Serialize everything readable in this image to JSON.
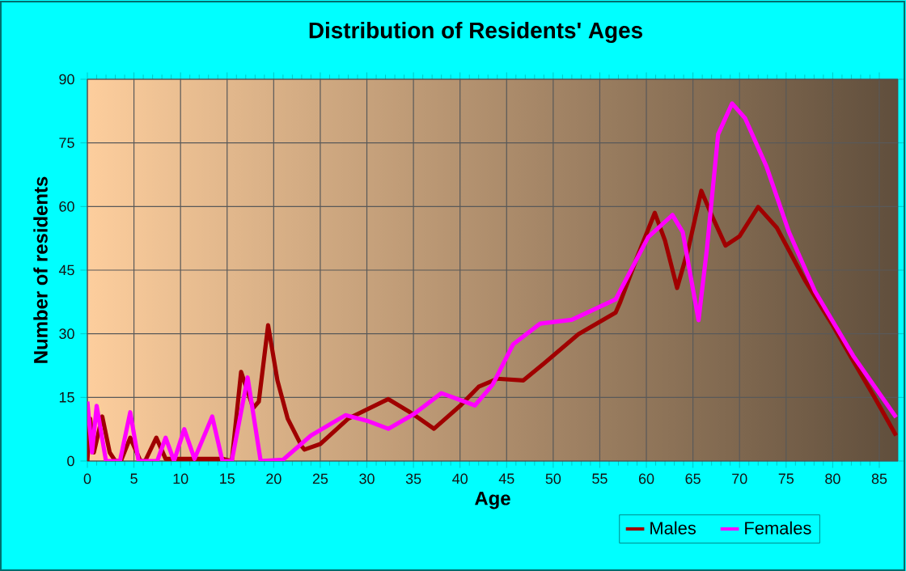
{
  "chart_data": {
    "type": "line",
    "title": "Distribution of Residents' Ages",
    "xlabel": "Age",
    "ylabel": "Number of residents",
    "xlim": [
      0,
      87
    ],
    "ylim": [
      0,
      90
    ],
    "xticks": [
      0,
      5,
      10,
      15,
      20,
      25,
      30,
      35,
      40,
      45,
      50,
      55,
      60,
      65,
      70,
      75,
      80,
      85
    ],
    "yticks": [
      0,
      15,
      30,
      45,
      60,
      75,
      90
    ],
    "grid": true,
    "legend": "bottom",
    "series": [
      {
        "name": "Males",
        "color": "#a00000",
        "x": [
          0,
          0.3,
          0.7,
          1.6,
          2.4,
          3,
          3.6,
          4.6,
          5.7,
          6.2,
          7.4,
          8.4,
          10,
          12,
          14.5,
          15.5,
          16.5,
          17.8,
          18.4,
          19.4,
          20.4,
          21.5,
          23,
          23.3,
          25,
          28,
          32.3,
          35,
          37.2,
          40,
          42,
          44,
          46.8,
          49,
          52.7,
          56.7,
          57.2,
          59,
          60.9,
          62,
          63.3,
          64.5,
          65.9,
          67,
          68.5,
          70,
          72,
          74,
          77,
          80,
          82.2,
          84.5,
          86.8
        ],
        "values": [
          0,
          10,
          2,
          10.5,
          2,
          0,
          0,
          5.5,
          0,
          0,
          5.5,
          0.5,
          0.5,
          0.5,
          0.5,
          0,
          21,
          12.5,
          14,
          32,
          19,
          10,
          3.5,
          2.7,
          4,
          10,
          14.6,
          11,
          7.6,
          13,
          17.5,
          19.4,
          19,
          23,
          29.9,
          35,
          37.5,
          48,
          58.5,
          52,
          40.8,
          50,
          63.7,
          58,
          50.8,
          53,
          59.9,
          55,
          42.7,
          32,
          23.6,
          15,
          6
        ]
      },
      {
        "name": "Females",
        "color": "#ff00ff",
        "x": [
          0,
          0.5,
          1,
          2,
          3.5,
          4.6,
          5.5,
          7.5,
          8.4,
          9.3,
          10.4,
          11.5,
          13.4,
          14.5,
          15.5,
          17.2,
          18.6,
          21,
          21.9,
          24,
          27.7,
          30,
          32.3,
          35,
          38,
          41.6,
          43.5,
          45.7,
          48.6,
          52,
          56.7,
          60.2,
          62.8,
          63.9,
          65.6,
          66.5,
          67.7,
          69.2,
          70.6,
          72.9,
          75.3,
          78.1,
          82.2,
          86.8
        ],
        "values": [
          14,
          2,
          13,
          0,
          0,
          11.5,
          0,
          0,
          5.5,
          0,
          7.5,
          0.5,
          10.5,
          0,
          0,
          19.7,
          0,
          0.3,
          2,
          6,
          10.8,
          9.5,
          7.6,
          11,
          16,
          13.1,
          18,
          27.5,
          32.4,
          33.3,
          38.1,
          52.8,
          58,
          54,
          33.2,
          50,
          77,
          84.3,
          80.8,
          69.4,
          54,
          40,
          24.8,
          10.3
        ]
      }
    ]
  }
}
